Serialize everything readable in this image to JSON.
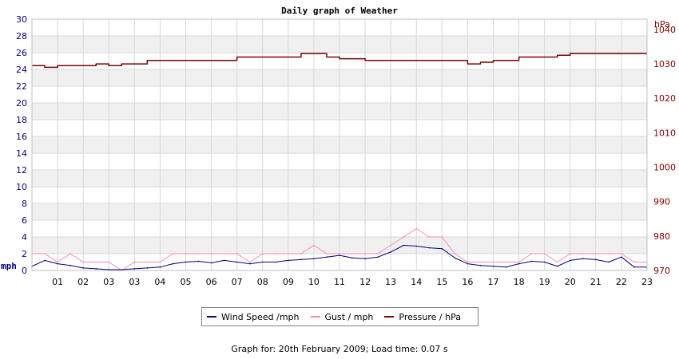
{
  "chart_data": {
    "type": "line",
    "title": "Daily graph of Weather",
    "left_axis": {
      "unit": "mph",
      "range": [
        0,
        30
      ],
      "ticks": [
        "0",
        "2",
        "4",
        "6",
        "8",
        "10",
        "12",
        "14",
        "16",
        "18",
        "20",
        "22",
        "24",
        "26",
        "28",
        "30"
      ],
      "color": "#000080"
    },
    "right_axis": {
      "unit": "hPa",
      "range": [
        970,
        1043
      ],
      "ticks": [
        "970",
        "980",
        "990",
        "1000",
        "1010",
        "1020",
        "1030",
        "1040"
      ],
      "color": "#800000"
    },
    "x_axis": {
      "range": [
        0,
        24
      ],
      "ticks": [
        "01",
        "02",
        "03",
        "03",
        "04",
        "05",
        "06",
        "07",
        "08",
        "09",
        "10",
        "11",
        "12",
        "13",
        "14",
        "15",
        "16",
        "17",
        "18",
        "19",
        "20",
        "21",
        "22",
        "23"
      ]
    },
    "grid": true,
    "legend_position": "bottom",
    "series": [
      {
        "name": "Wind Speed /mph",
        "axis": "left",
        "color": "#000080",
        "x": [
          0,
          0.5,
          1,
          1.5,
          2,
          2.5,
          3,
          3.5,
          4,
          4.5,
          5,
          5.5,
          6,
          6.5,
          7,
          7.5,
          8,
          8.5,
          9,
          9.5,
          10,
          10.5,
          11,
          11.5,
          12,
          12.5,
          13,
          13.5,
          14,
          14.5,
          15,
          15.5,
          16,
          16.5,
          17,
          17.5,
          18,
          18.5,
          19,
          19.5,
          20,
          20.5,
          21,
          21.5,
          22,
          22.5,
          23,
          23.5
        ],
        "values": [
          0.5,
          1.2,
          0.8,
          0.6,
          0.3,
          0.2,
          0.1,
          0.1,
          0.2,
          0.3,
          0.4,
          0.8,
          1.0,
          1.1,
          0.9,
          1.2,
          1.0,
          0.8,
          1.0,
          1.0,
          1.2,
          1.3,
          1.4,
          1.6,
          1.8,
          1.5,
          1.4,
          1.6,
          2.2,
          3.0,
          2.9,
          2.7,
          2.6,
          1.5,
          0.8,
          0.6,
          0.5,
          0.4,
          0.8,
          1.1,
          1.0,
          0.5,
          1.2,
          1.4,
          1.3,
          1.0,
          1.6,
          0.4
        ]
      },
      {
        "name": "Gust / mph",
        "axis": "left",
        "color": "#ff88aa",
        "x": [
          0,
          0.5,
          1,
          1.5,
          2,
          2.5,
          3,
          3.5,
          4,
          4.5,
          5,
          5.5,
          6,
          6.5,
          7,
          7.5,
          8,
          8.5,
          9,
          9.5,
          10,
          10.5,
          11,
          11.5,
          12,
          12.5,
          13,
          13.5,
          14,
          14.5,
          15,
          15.5,
          16,
          16.5,
          17,
          17.5,
          18,
          18.5,
          19,
          19.5,
          20,
          20.5,
          21,
          21.5,
          22,
          22.5,
          23,
          23.5
        ],
        "values": [
          2,
          2,
          1,
          2,
          1,
          1,
          1,
          0,
          1,
          1,
          1,
          2,
          2,
          2,
          2,
          2,
          2,
          1,
          2,
          2,
          2,
          2,
          3,
          2,
          2,
          2,
          2,
          2,
          3,
          4,
          5,
          4,
          4,
          2,
          1,
          1,
          1,
          1,
          1,
          2,
          2,
          1,
          2,
          2,
          2,
          2,
          2,
          1
        ]
      },
      {
        "name": "Pressure / hPa",
        "axis": "right",
        "color": "#800000",
        "x": [
          0,
          0.5,
          1,
          1.5,
          2,
          2.5,
          3,
          3.5,
          4,
          4.5,
          5,
          5.5,
          6,
          6.5,
          7,
          7.5,
          8,
          8.5,
          9,
          9.5,
          10,
          10.5,
          11,
          11.5,
          12,
          12.5,
          13,
          13.5,
          14,
          14.5,
          15,
          15.5,
          16,
          16.5,
          17,
          17.5,
          18,
          18.5,
          19,
          19.5,
          20,
          20.5,
          21,
          21.5,
          22,
          22.5,
          23,
          23.5
        ],
        "values": [
          1029.5,
          1029,
          1029.5,
          1029.5,
          1029.5,
          1030,
          1029.5,
          1030,
          1030,
          1031,
          1031,
          1031,
          1031,
          1031,
          1031,
          1031,
          1032,
          1032,
          1032,
          1032,
          1032,
          1033,
          1033,
          1032,
          1031.5,
          1031.5,
          1031,
          1031,
          1031,
          1031,
          1031,
          1031,
          1031,
          1031,
          1030,
          1030.5,
          1031,
          1031,
          1032,
          1032,
          1032,
          1032.5,
          1033,
          1033,
          1033,
          1033,
          1033,
          1033
        ]
      }
    ]
  },
  "legend": {
    "wind_label": "Wind Speed /mph",
    "gust_label": "Gust / mph",
    "pressure_label": "Pressure / hPa",
    "wind_color": "#000080",
    "gust_color": "#ff88aa",
    "pressure_color": "#800000"
  },
  "footer": {
    "text": "Graph for: 20th February 2009; Load time: 0.07 s"
  }
}
